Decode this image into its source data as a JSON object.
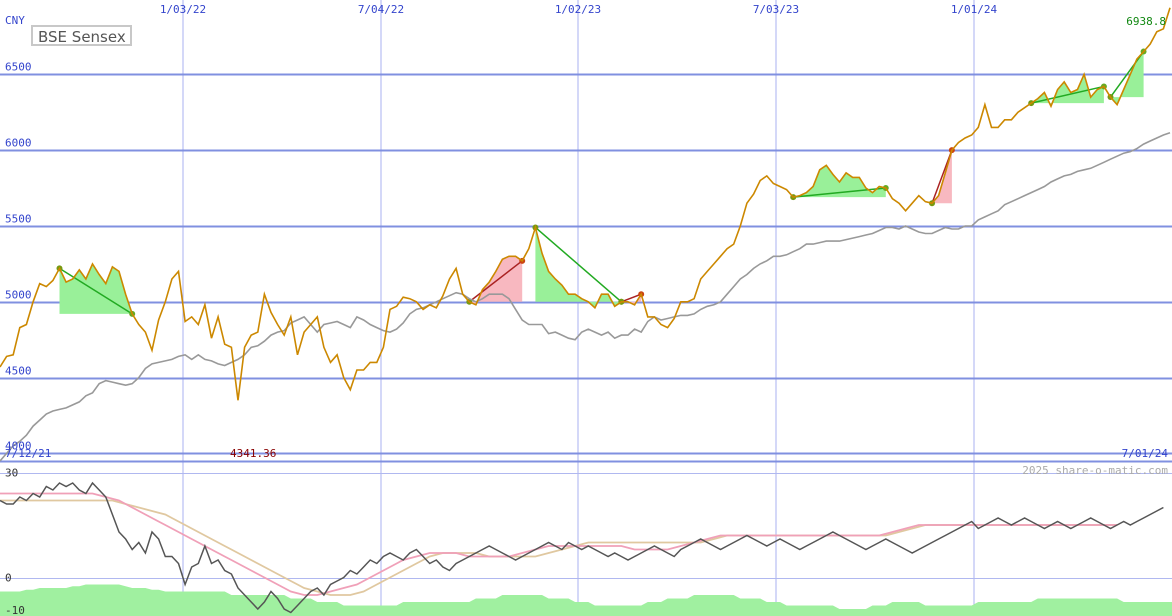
{
  "chart_data": [
    {
      "type": "line",
      "title": "BSE Sensex",
      "currency": "CNY",
      "last_value_label": "6938.8",
      "low_value_label": "4341.36",
      "x_start_label": "7/12/21",
      "x_end_label": "7/01/24",
      "watermark": "2025 share-o-matic.com",
      "x_ticks": [
        "1/03/22",
        "7/04/22",
        "1/02/23",
        "7/03/23",
        "1/01/24"
      ],
      "y_ticks": [
        "4000",
        "4500",
        "5000",
        "5500",
        "6000",
        "6500"
      ],
      "ylim": [
        3950,
        6990
      ],
      "grid": true,
      "series": [
        {
          "role": "price",
          "color": "#cc8800",
          "values": [
            4570,
            4640,
            4650,
            4830,
            4850,
            5000,
            5120,
            5100,
            5140,
            5220,
            5130,
            5150,
            5210,
            5150,
            5250,
            5180,
            5120,
            5230,
            5200,
            5050,
            4920,
            4850,
            4800,
            4680,
            4880,
            5000,
            5150,
            5200,
            4870,
            4900,
            4850,
            4980,
            4760,
            4900,
            4720,
            4700,
            4350,
            4700,
            4780,
            4800,
            5050,
            4930,
            4850,
            4780,
            4900,
            4650,
            4800,
            4850,
            4900,
            4700,
            4600,
            4650,
            4500,
            4420,
            4550,
            4550,
            4600,
            4600,
            4700,
            4950,
            4970,
            5030,
            5020,
            5000,
            4950,
            4980,
            4960,
            5040,
            5150,
            5220,
            5050,
            5000,
            4980,
            5080,
            5130,
            5200,
            5280,
            5300,
            5300,
            5270,
            5350,
            5490,
            5320,
            5200,
            5150,
            5110,
            5050,
            5050,
            5020,
            5000,
            4960,
            5050,
            5050,
            4970,
            5000,
            5000,
            4980,
            5050,
            4900,
            4900,
            4850,
            4830,
            4890,
            5000,
            5000,
            5020,
            5150,
            5200,
            5250,
            5300,
            5350,
            5380,
            5500,
            5650,
            5710,
            5800,
            5830,
            5780,
            5760,
            5740,
            5690,
            5700,
            5720,
            5760,
            5870,
            5900,
            5840,
            5790,
            5850,
            5820,
            5820,
            5750,
            5720,
            5760,
            5750,
            5680,
            5650,
            5600,
            5650,
            5700,
            5660,
            5650,
            5700,
            5850,
            6000,
            6050,
            6080,
            6100,
            6150,
            6300,
            6150,
            6150,
            6200,
            6200,
            6250,
            6280,
            6310,
            6340,
            6380,
            6290,
            6400,
            6450,
            6380,
            6400,
            6500,
            6350,
            6400,
            6420,
            6350,
            6300,
            6400,
            6500,
            6600,
            6650,
            6700,
            6780,
            6800,
            6938.8
          ]
        },
        {
          "role": "comparison",
          "color": "#999999",
          "values": [
            3950,
            4000,
            4050,
            4080,
            4120,
            4180,
            4220,
            4260,
            4280,
            4290,
            4300,
            4320,
            4340,
            4380,
            4400,
            4460,
            4480,
            4470,
            4460,
            4450,
            4460,
            4500,
            4560,
            4590,
            4600,
            4610,
            4620,
            4640,
            4650,
            4620,
            4650,
            4620,
            4610,
            4590,
            4580,
            4600,
            4620,
            4650,
            4700,
            4710,
            4740,
            4780,
            4800,
            4810,
            4860,
            4880,
            4900,
            4850,
            4800,
            4850,
            4860,
            4870,
            4850,
            4830,
            4900,
            4880,
            4850,
            4830,
            4810,
            4800,
            4820,
            4860,
            4920,
            4950,
            4960,
            4980,
            5000,
            5020,
            5040,
            5060,
            5050,
            5020,
            5000,
            5020,
            5050,
            5050,
            5050,
            5020,
            4950,
            4880,
            4850,
            4850,
            4850,
            4790,
            4800,
            4780,
            4760,
            4750,
            4800,
            4820,
            4800,
            4780,
            4800,
            4760,
            4780,
            4780,
            4820,
            4800,
            4870,
            4900,
            4880,
            4890,
            4900,
            4910,
            4910,
            4920,
            4950,
            4970,
            4980,
            5000,
            5050,
            5100,
            5150,
            5180,
            5220,
            5250,
            5270,
            5300,
            5300,
            5310,
            5330,
            5350,
            5380,
            5380,
            5390,
            5400,
            5400,
            5400,
            5410,
            5420,
            5430,
            5440,
            5450,
            5470,
            5490,
            5490,
            5480,
            5500,
            5480,
            5460,
            5450,
            5450,
            5470,
            5490,
            5480,
            5480,
            5500,
            5500,
            5540,
            5560,
            5580,
            5600,
            5640,
            5660,
            5680,
            5700,
            5720,
            5740,
            5760,
            5790,
            5810,
            5830,
            5840,
            5860,
            5870,
            5880,
            5900,
            5920,
            5940,
            5960,
            5980,
            5990,
            6010,
            6040,
            6060,
            6080,
            6100,
            6115
          ]
        }
      ]
    },
    {
      "type": "line",
      "y_ticks": [
        "30",
        "0",
        "-10"
      ],
      "ylim": [
        -11,
        33
      ],
      "series": [
        {
          "role": "oscillator",
          "color": "#555555",
          "values": [
            22,
            21,
            21,
            23,
            22,
            24,
            23,
            26,
            25,
            27,
            26,
            27,
            25,
            24,
            27,
            25,
            23,
            18,
            13,
            11,
            8,
            10,
            7,
            13,
            11,
            6,
            6,
            4,
            -2,
            3,
            4,
            9,
            4,
            5,
            2,
            1,
            -3,
            -5,
            -7,
            -9,
            -7,
            -4,
            -6,
            -9,
            -10,
            -8,
            -6,
            -4,
            -3,
            -5,
            -2,
            -1,
            0,
            2,
            1,
            3,
            5,
            4,
            6,
            7,
            6,
            5,
            7,
            8,
            6,
            4,
            5,
            3,
            2,
            4,
            5,
            6,
            7,
            8,
            9,
            8,
            7,
            6,
            5,
            6,
            7,
            8,
            9,
            10,
            9,
            8,
            10,
            9,
            8,
            9,
            8,
            7,
            6,
            7,
            6,
            5,
            6,
            7,
            8,
            9,
            8,
            7,
            6,
            8,
            9,
            10,
            11,
            10,
            9,
            8,
            9,
            10,
            11,
            12,
            11,
            10,
            9,
            10,
            11,
            10,
            9,
            8,
            9,
            10,
            11,
            12,
            13,
            12,
            11,
            10,
            9,
            8,
            9,
            10,
            11,
            10,
            9,
            8,
            7,
            8,
            9,
            10,
            11,
            12,
            13,
            14,
            15,
            16,
            14,
            15,
            16,
            17,
            16,
            15,
            16,
            17,
            16,
            15,
            14,
            15,
            16,
            15,
            14,
            15,
            16,
            17,
            16,
            15,
            14,
            15,
            16,
            15,
            16,
            17,
            18,
            19,
            20
          ]
        },
        {
          "role": "fast-average",
          "color": "#f0a0b8",
          "values": [
            24,
            24,
            24,
            24,
            24,
            24,
            24,
            24,
            24,
            24,
            24,
            24,
            24,
            24,
            24,
            23.5,
            23,
            22.5,
            22,
            21,
            20,
            19,
            18,
            17,
            16,
            15,
            14,
            13,
            12,
            11,
            10,
            9,
            8,
            7,
            6,
            5,
            4,
            3,
            2,
            1,
            0,
            -1,
            -2,
            -3,
            -4,
            -4.5,
            -5,
            -5,
            -5,
            -4.5,
            -4,
            -3.5,
            -3,
            -2.5,
            -2,
            -1,
            0,
            1,
            2,
            3,
            4,
            5,
            5.5,
            6,
            6.5,
            7,
            7,
            7,
            7,
            7,
            6.5,
            6,
            6,
            6,
            6,
            6,
            6,
            6,
            6.5,
            7,
            7.5,
            8,
            8.5,
            9,
            9,
            9,
            9,
            9,
            9,
            9,
            9,
            9,
            9,
            9,
            9,
            8.5,
            8,
            8,
            8,
            8,
            8,
            8,
            8.5,
            9,
            9.5,
            10,
            10.5,
            11,
            11.5,
            12,
            12,
            12,
            12,
            12,
            12,
            12,
            12,
            12,
            12,
            12,
            12,
            12,
            12,
            12,
            12,
            12,
            12,
            12,
            12,
            12,
            12,
            12,
            12,
            12,
            12.5,
            13,
            13.5,
            14,
            14.5,
            15,
            15,
            15,
            15,
            15,
            15,
            15,
            15,
            15,
            15,
            15,
            15,
            15,
            15,
            15,
            15,
            15,
            15,
            15,
            15,
            15,
            15,
            15,
            15,
            15,
            15,
            15,
            15,
            15,
            15,
            15
          ]
        },
        {
          "role": "slow-average",
          "color": "#e0c8a0",
          "values": [
            22,
            22,
            22,
            22,
            22,
            22,
            22,
            22,
            22,
            22,
            22,
            22,
            22,
            22,
            22,
            22,
            22,
            22,
            21.5,
            21,
            20.5,
            20,
            19.5,
            19,
            18.5,
            18,
            17,
            16,
            15,
            14,
            13,
            12,
            11,
            10,
            9,
            8,
            7,
            6,
            5,
            4,
            3,
            2,
            1,
            0,
            -1,
            -2,
            -3,
            -3.5,
            -4,
            -4.5,
            -5,
            -5,
            -5,
            -5,
            -4.5,
            -4,
            -3,
            -2,
            -1,
            0,
            1,
            2,
            3,
            4,
            5,
            6,
            6.5,
            7,
            7,
            7,
            7,
            7,
            7,
            6.5,
            6,
            6,
            6,
            6,
            6,
            6,
            6,
            6,
            6.5,
            7,
            7.5,
            8,
            8.5,
            9,
            9.5,
            10,
            10,
            10,
            10,
            10,
            10,
            10,
            10,
            10,
            10,
            10,
            10,
            10,
            10,
            10,
            10,
            10,
            10,
            10.5,
            11,
            11.5,
            12,
            12,
            12,
            12,
            12,
            12,
            12,
            12,
            12,
            12,
            12,
            12,
            12,
            12,
            12,
            12,
            12,
            12,
            12,
            12,
            12,
            12,
            12,
            12,
            12,
            12.5,
            13,
            13.5,
            14,
            14.5,
            15,
            15,
            15,
            15,
            15,
            15,
            15,
            15,
            15,
            15,
            15,
            15,
            15,
            15,
            15,
            15,
            15,
            15,
            15,
            15,
            15,
            15,
            15,
            15,
            15,
            15,
            15,
            15,
            15,
            15
          ]
        },
        {
          "role": "volume-area",
          "color": "#a0f0a0",
          "values": [
            -4,
            -4,
            -4,
            -4,
            -3.5,
            -3.5,
            -3,
            -3,
            -3,
            -3,
            -3,
            -2.5,
            -2.5,
            -2,
            -2,
            -2,
            -2,
            -2,
            -2,
            -2.5,
            -3,
            -3,
            -3,
            -3.5,
            -3.5,
            -4,
            -4,
            -4,
            -4,
            -4,
            -4,
            -4,
            -4,
            -4,
            -4,
            -5,
            -5,
            -5,
            -5,
            -5,
            -5,
            -5,
            -5,
            -5,
            -6,
            -6,
            -6,
            -6,
            -7,
            -7,
            -7,
            -7,
            -8,
            -8,
            -8,
            -8,
            -8,
            -8,
            -8,
            -8,
            -8,
            -7,
            -7,
            -7,
            -7,
            -7,
            -7,
            -7,
            -7,
            -7,
            -7,
            -7,
            -6,
            -6,
            -6,
            -6,
            -5,
            -5,
            -5,
            -5,
            -5,
            -5,
            -5,
            -6,
            -6,
            -6,
            -6,
            -7,
            -7,
            -7,
            -8,
            -8,
            -8,
            -8,
            -8,
            -8,
            -8,
            -8,
            -7,
            -7,
            -7,
            -6,
            -6,
            -6,
            -6,
            -5,
            -5,
            -5,
            -5,
            -5,
            -5,
            -5,
            -6,
            -6,
            -6,
            -6,
            -7,
            -7,
            -7,
            -8,
            -8,
            -8,
            -8,
            -8,
            -8,
            -8,
            -8,
            -9,
            -9,
            -9,
            -9,
            -9,
            -8,
            -8,
            -8,
            -7,
            -7,
            -7,
            -7,
            -7,
            -8,
            -8,
            -8,
            -8,
            -8,
            -8,
            -8,
            -8,
            -7,
            -7,
            -7,
            -7,
            -7,
            -7,
            -7,
            -7,
            -7,
            -6,
            -6,
            -6,
            -6,
            -6,
            -6,
            -6,
            -6,
            -6,
            -6,
            -6,
            -6,
            -6,
            -7,
            -7,
            -7,
            -7,
            -7,
            -7,
            -7,
            -7,
            -7,
            -7,
            -7,
            -7,
            -7,
            -7,
            -7,
            -7
          ]
        }
      ]
    }
  ]
}
